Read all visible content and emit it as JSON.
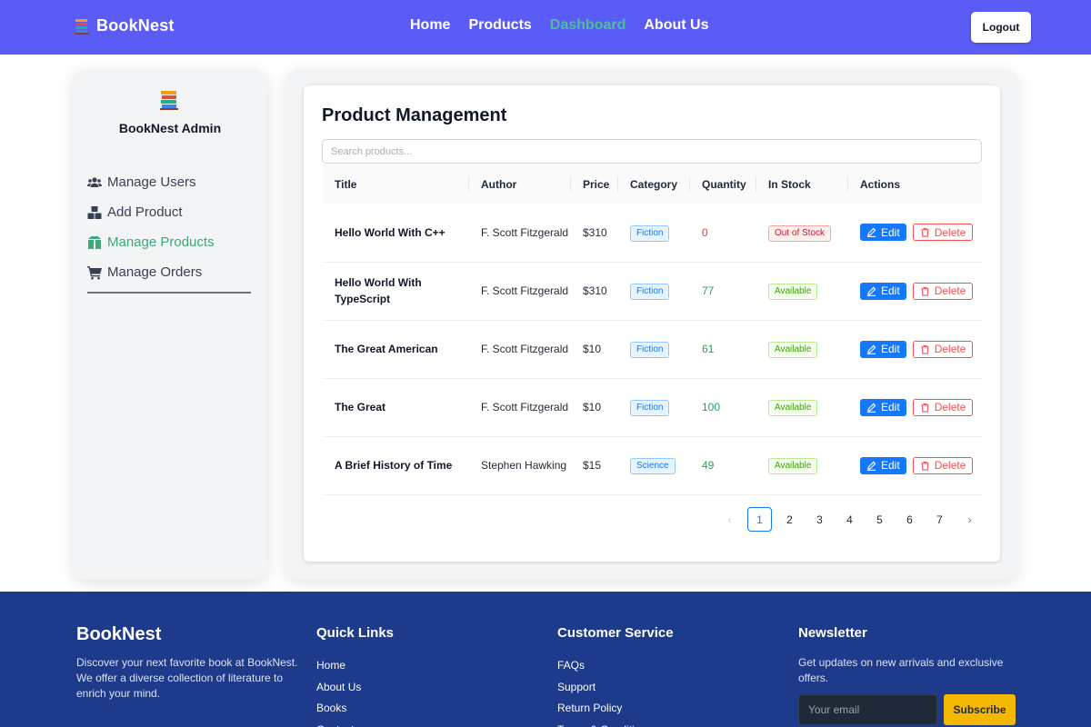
{
  "brand": {
    "name": "BookNest",
    "icon": "books-icon"
  },
  "nav": {
    "links": [
      {
        "label": "Home"
      },
      {
        "label": "Products"
      },
      {
        "label": "Dashboard",
        "active": true
      },
      {
        "label": "About Us"
      }
    ],
    "logout_label": "Logout",
    "active_color": "#4ade80"
  },
  "sidebar": {
    "title": "BookNest Admin",
    "items": [
      {
        "label": "Manage Users",
        "icon": "users-icon"
      },
      {
        "label": "Add Product",
        "icon": "boxes-icon"
      },
      {
        "label": "Manage Products",
        "icon": "box-open-icon",
        "active": true
      },
      {
        "label": "Manage Orders",
        "icon": "cart-icon"
      }
    ]
  },
  "main": {
    "title": "Product Management",
    "search_placeholder": "Search products...",
    "columns": [
      "Title",
      "Author",
      "Price",
      "Category",
      "Quantity",
      "In Stock",
      "Actions"
    ],
    "rows": [
      {
        "title": "Hello World With C++",
        "author": "F. Scott Fitzgerald",
        "price": "$310",
        "category": "Fiction",
        "quantity": "0",
        "stock": "Out of Stock"
      },
      {
        "title": "Hello World With TypeScript",
        "author": "F. Scott Fitzgerald",
        "price": "$310",
        "category": "Fiction",
        "quantity": "77",
        "stock": "Available"
      },
      {
        "title": "The Great American",
        "author": "F. Scott Fitzgerald",
        "price": "$10",
        "category": "Fiction",
        "quantity": "61",
        "stock": "Available"
      },
      {
        "title": "The Great",
        "author": "F. Scott Fitzgerald",
        "price": "$10",
        "category": "Fiction",
        "quantity": "100",
        "stock": "Available"
      },
      {
        "title": "A Brief History of Time",
        "author": "Stephen Hawking",
        "price": "$15",
        "category": "Science",
        "quantity": "49",
        "stock": "Available"
      }
    ],
    "edit_label": "Edit",
    "delete_label": "Delete",
    "pagination": {
      "pages": [
        "1",
        "2",
        "3",
        "4",
        "5",
        "6",
        "7"
      ],
      "current": "1",
      "prev": "‹",
      "next": "›"
    }
  },
  "footer": {
    "brand": "BookNest",
    "description": "Discover your next favorite book at BookNest. We offer a diverse collection of literature to enrich your mind.",
    "quick_links": {
      "heading": "Quick Links",
      "links": [
        "Home",
        "About Us",
        "Books",
        "Contact"
      ]
    },
    "customer_service": {
      "heading": "Customer Service",
      "links": [
        "FAQs",
        "Support",
        "Return Policy",
        "Terms & Conditions"
      ]
    },
    "newsletter": {
      "heading": "Newsletter",
      "text": "Get updates on new arrivals and exclusive offers.",
      "email_placeholder": "Your email",
      "subscribe_label": "Subscribe"
    }
  },
  "colors": {
    "navbar": "#5b5cf6",
    "footer": "#1e3a8a",
    "primary": "#1677ff",
    "danger": "#ff4d4f",
    "success": "#2e9e5b",
    "subscribe": "#f5b800"
  }
}
